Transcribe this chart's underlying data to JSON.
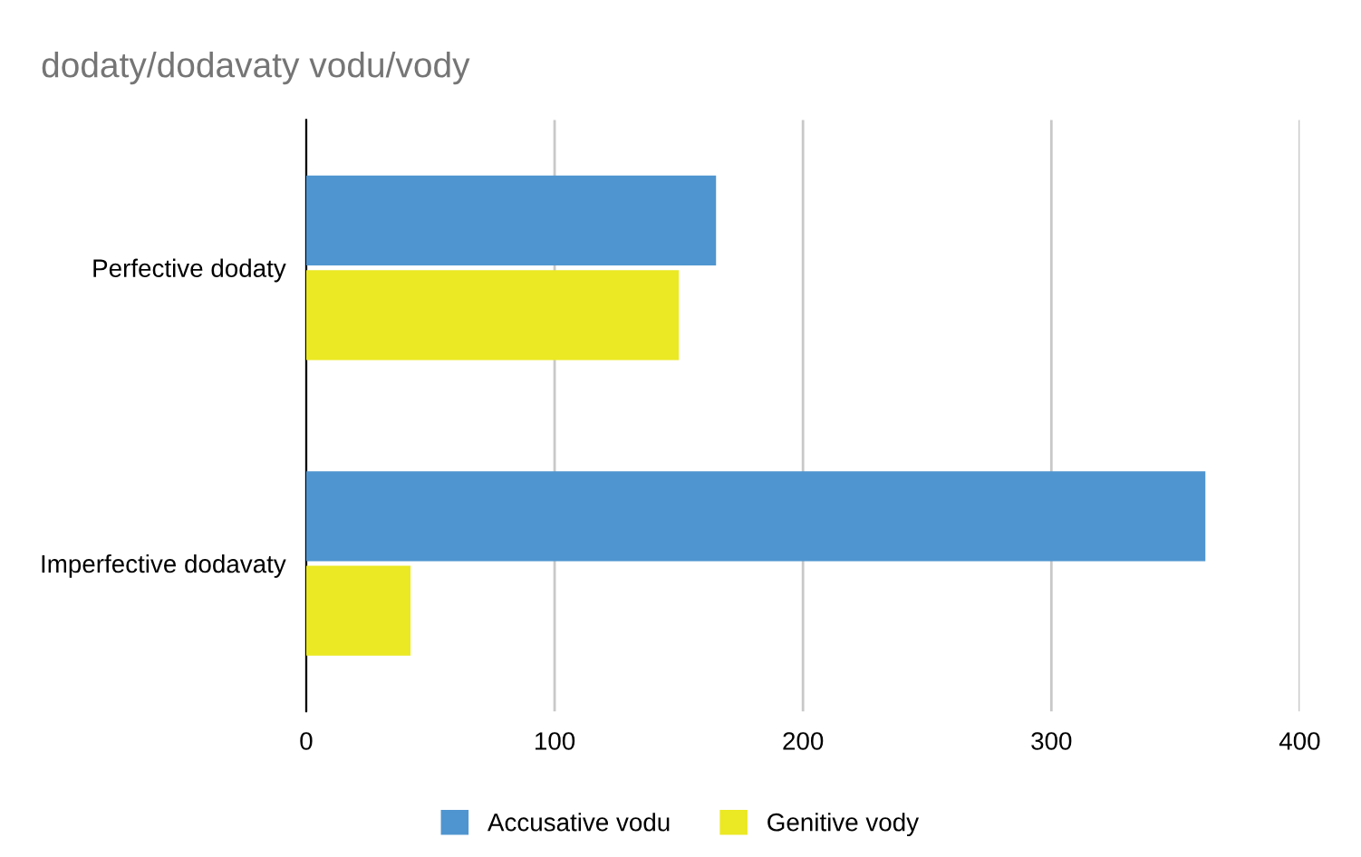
{
  "chart_data": {
    "type": "bar",
    "orientation": "horizontal",
    "title": "dodaty/dodavaty vodu/vody",
    "categories": [
      "Perfective dodaty",
      "Imperfective dodavaty"
    ],
    "series": [
      {
        "name": "Accusative vodu",
        "color": "#4f95d0",
        "values": [
          165,
          362
        ]
      },
      {
        "name": "Genitive vody",
        "color": "#ebe824",
        "values": [
          150,
          42
        ]
      }
    ],
    "xlim": [
      0,
      400
    ],
    "xticks": [
      0,
      100,
      200,
      300,
      400
    ],
    "grid": "x",
    "legend": "bottom"
  }
}
